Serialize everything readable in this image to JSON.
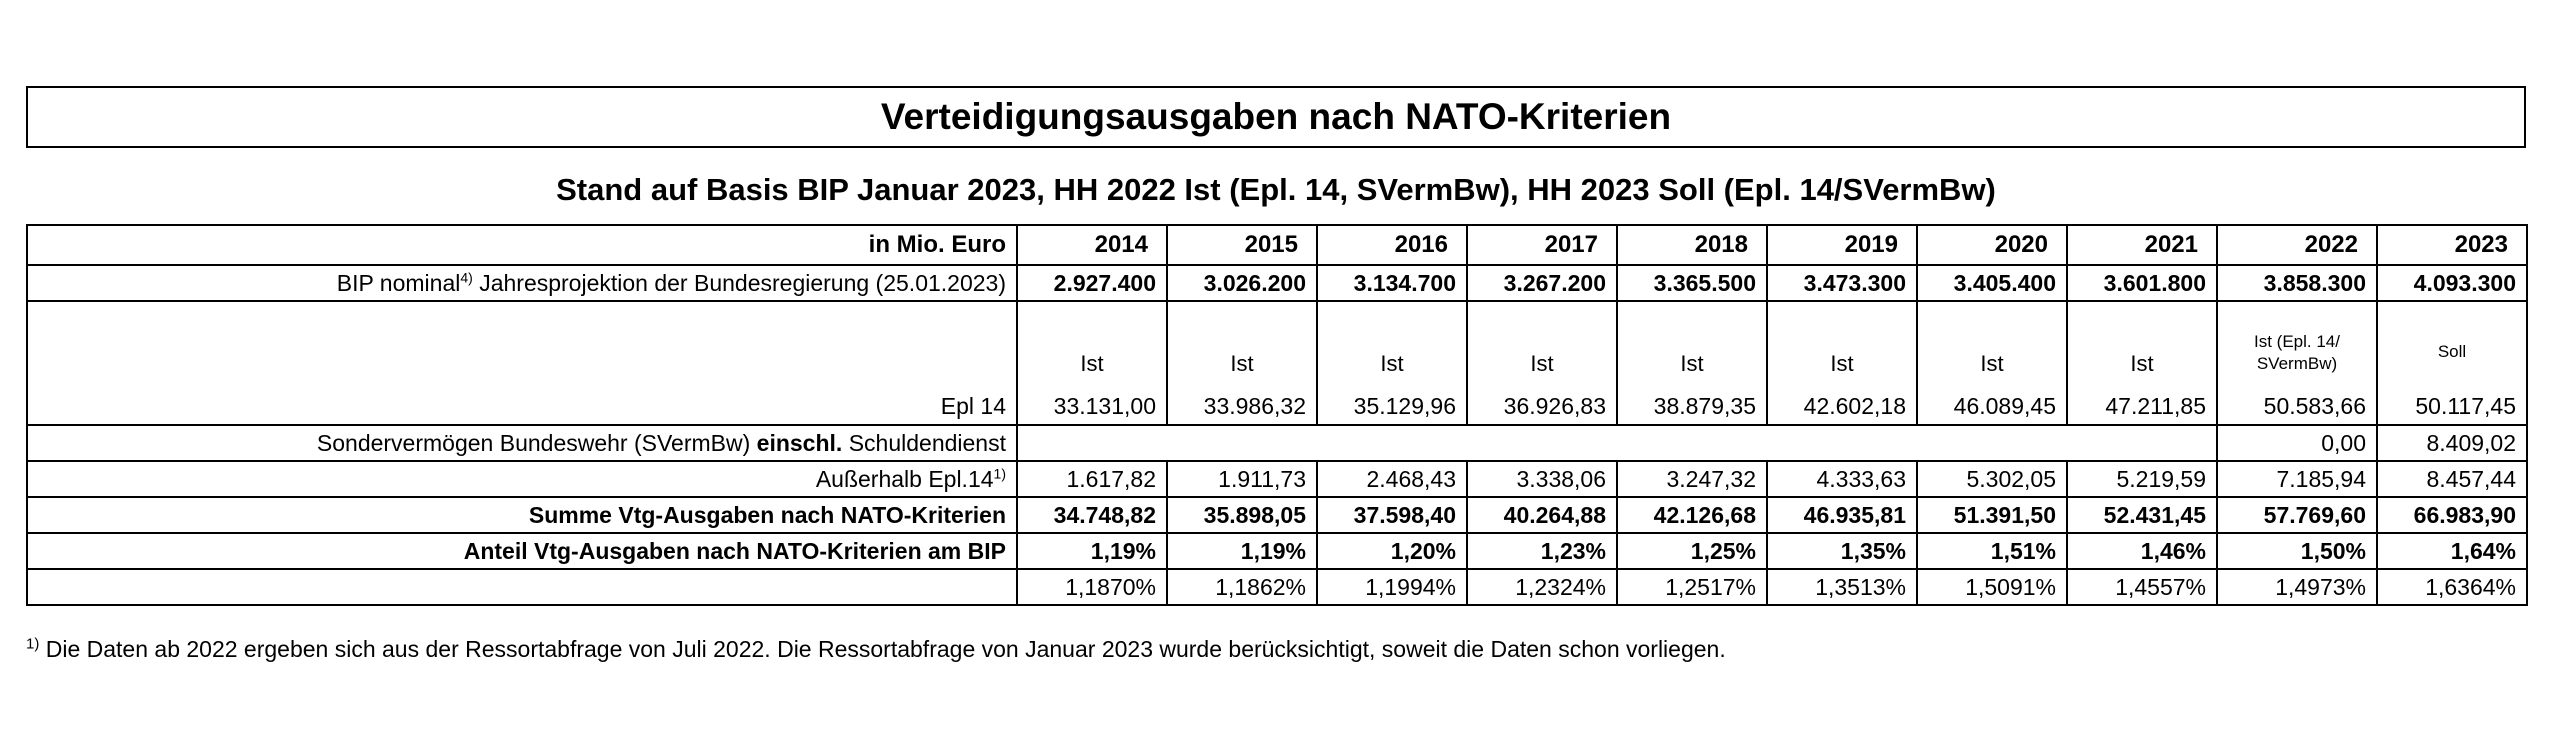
{
  "title": "Verteidigungsausgaben nach NATO-Kriterien",
  "subtitle": "Stand auf Basis BIP Januar 2023, HH 2022 Ist (Epl. 14, SVermBw), HH 2023 Soll (Epl. 14/SVermBw)",
  "table": {
    "unit_label": "in Mio. Euro",
    "years": [
      "2014",
      "2015",
      "2016",
      "2017",
      "2018",
      "2019",
      "2020",
      "2021",
      "2022",
      "2023"
    ],
    "bip": {
      "label_main": "BIP nominal",
      "label_sup": "4)",
      "label_rest": " Jahresprojektion der Bundesregierung (25.01.2023)",
      "values": [
        "2.927.400",
        "3.026.200",
        "3.134.700",
        "3.267.200",
        "3.365.500",
        "3.473.300",
        "3.405.400",
        "3.601.800",
        "3.858.300",
        "4.093.300"
      ]
    },
    "epl14": {
      "label": "Epl 14",
      "kinds": [
        "Ist",
        "Ist",
        "Ist",
        "Ist",
        "Ist",
        "Ist",
        "Ist",
        "Ist",
        "Ist (Epl. 14/ SVermBw)",
        "Soll"
      ],
      "values": [
        "33.131,00",
        "33.986,32",
        "35.129,96",
        "36.926,83",
        "38.879,35",
        "42.602,18",
        "46.089,45",
        "47.211,85",
        "50.583,66",
        "50.117,45"
      ]
    },
    "svermbw": {
      "label_a": "Sondervermögen Bundeswehr (SVermBw) ",
      "label_b": "einschl.",
      "label_c": " Schuldendienst",
      "values": [
        "",
        "",
        "",
        "",
        "",
        "",
        "",
        "",
        "0,00",
        "8.409,02"
      ]
    },
    "ausserhalb": {
      "label": "Außerhalb Epl.14",
      "label_sup": "1)",
      "values": [
        "1.617,82",
        "1.911,73",
        "2.468,43",
        "3.338,06",
        "3.247,32",
        "4.333,63",
        "5.302,05",
        "5.219,59",
        "7.185,94",
        "8.457,44"
      ]
    },
    "summe": {
      "label": "Summe Vtg-Ausgaben nach NATO-Kriterien",
      "values": [
        "34.748,82",
        "35.898,05",
        "37.598,40",
        "40.264,88",
        "42.126,68",
        "46.935,81",
        "51.391,50",
        "52.431,45",
        "57.769,60",
        "66.983,90"
      ]
    },
    "anteil": {
      "label": "Anteil Vtg-Ausgaben nach NATO-Kriterien am BIP",
      "values": [
        "1,19%",
        "1,19%",
        "1,20%",
        "1,23%",
        "1,25%",
        "1,35%",
        "1,51%",
        "1,46%",
        "1,50%",
        "1,64%"
      ]
    },
    "anteil_precise": {
      "values": [
        "1,1870%",
        "1,1862%",
        "1,1994%",
        "1,2324%",
        "1,2517%",
        "1,3513%",
        "1,5091%",
        "1,4557%",
        "1,4973%",
        "1,6364%"
      ]
    }
  },
  "footnote": {
    "sup": "1)",
    "text": " Die Daten ab 2022 ergeben sich aus der Ressortabfrage von Juli 2022. Die Ressortabfrage von Januar 2023 wurde berücksichtigt, soweit die Daten schon vorliegen."
  }
}
